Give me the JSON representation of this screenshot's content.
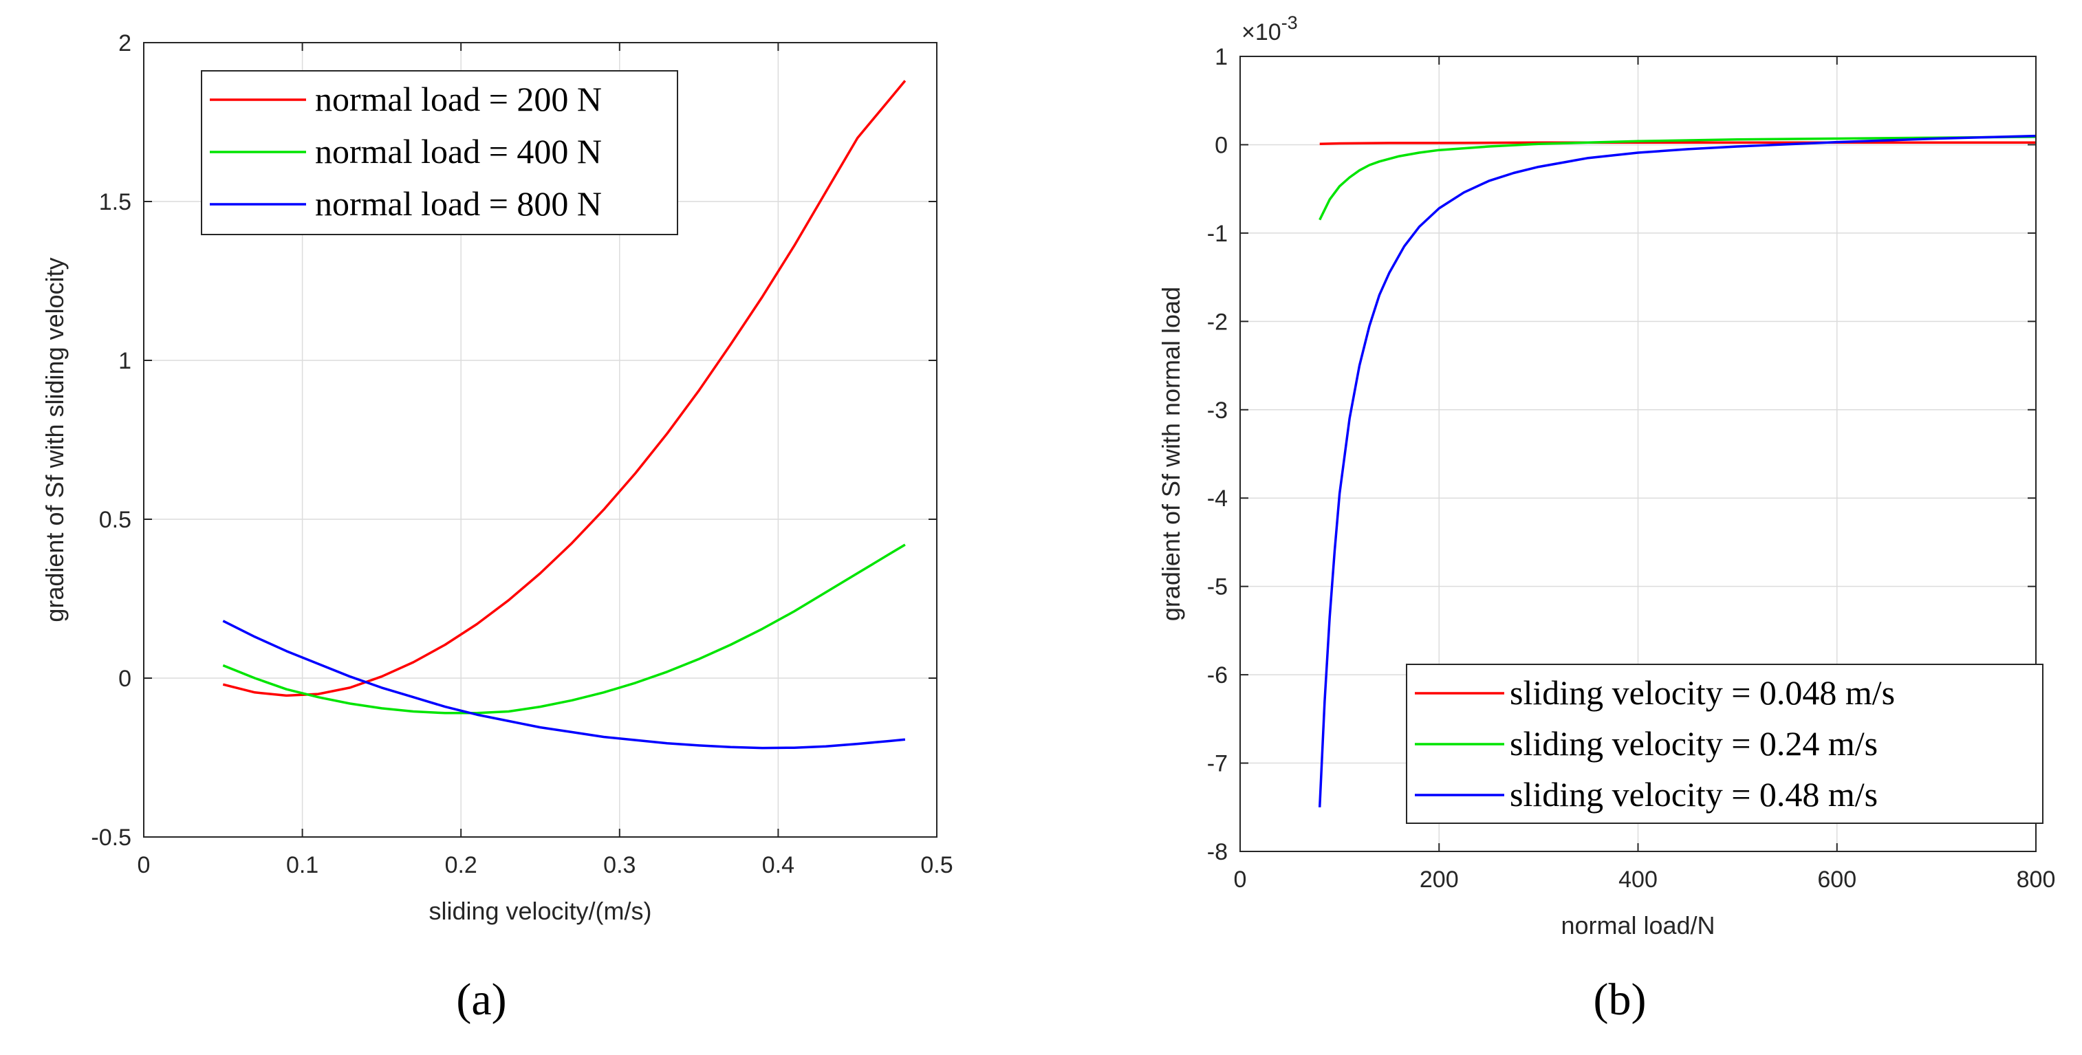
{
  "chart_data": [
    {
      "type": "line",
      "panel_label": "(a)",
      "title": "",
      "xlabel": "sliding velocity/(m/s)",
      "ylabel": "gradient of Sf with sliding velocity",
      "xlim": [
        0,
        0.5
      ],
      "ylim": [
        -0.5,
        2
      ],
      "xticks": [
        0,
        0.1,
        0.2,
        0.3,
        0.4,
        0.5
      ],
      "xtick_labels": [
        "0",
        "0.1",
        "0.2",
        "0.3",
        "0.4",
        "0.5"
      ],
      "yticks": [
        -0.5,
        0,
        0.5,
        1,
        1.5,
        2
      ],
      "ytick_labels": [
        "-0.5",
        "0",
        "0.5",
        "1",
        "1.5",
        "2"
      ],
      "grid": true,
      "legend_position": "top-left",
      "series": [
        {
          "name": "normal load = 200 N",
          "color": "#ff0000",
          "x": [
            0.05,
            0.07,
            0.09,
            0.11,
            0.13,
            0.15,
            0.17,
            0.19,
            0.21,
            0.23,
            0.25,
            0.27,
            0.29,
            0.31,
            0.33,
            0.35,
            0.37,
            0.39,
            0.41,
            0.43,
            0.45,
            0.47,
            0.48
          ],
          "y": [
            -0.02,
            -0.045,
            -0.055,
            -0.05,
            -0.03,
            0.005,
            0.05,
            0.105,
            0.17,
            0.245,
            0.33,
            0.425,
            0.53,
            0.645,
            0.77,
            0.905,
            1.05,
            1.2,
            1.36,
            1.53,
            1.7,
            1.82,
            1.88
          ]
        },
        {
          "name": "normal load = 400 N",
          "color": "#00e400",
          "x": [
            0.05,
            0.07,
            0.09,
            0.11,
            0.13,
            0.15,
            0.17,
            0.19,
            0.21,
            0.23,
            0.25,
            0.27,
            0.29,
            0.31,
            0.33,
            0.35,
            0.37,
            0.39,
            0.41,
            0.43,
            0.45,
            0.47,
            0.48
          ],
          "y": [
            0.04,
            0.0,
            -0.035,
            -0.06,
            -0.08,
            -0.095,
            -0.105,
            -0.11,
            -0.11,
            -0.105,
            -0.09,
            -0.07,
            -0.045,
            -0.015,
            0.02,
            0.06,
            0.105,
            0.155,
            0.21,
            0.27,
            0.33,
            0.39,
            0.42
          ]
        },
        {
          "name": "normal load = 800 N",
          "color": "#0000ff",
          "x": [
            0.05,
            0.07,
            0.09,
            0.11,
            0.13,
            0.15,
            0.17,
            0.19,
            0.21,
            0.23,
            0.25,
            0.27,
            0.29,
            0.31,
            0.33,
            0.35,
            0.37,
            0.39,
            0.41,
            0.43,
            0.45,
            0.47,
            0.48
          ],
          "y": [
            0.18,
            0.13,
            0.085,
            0.045,
            0.005,
            -0.03,
            -0.06,
            -0.09,
            -0.115,
            -0.135,
            -0.155,
            -0.17,
            -0.185,
            -0.195,
            -0.205,
            -0.212,
            -0.217,
            -0.22,
            -0.219,
            -0.215,
            -0.207,
            -0.198,
            -0.193
          ]
        }
      ]
    },
    {
      "type": "line",
      "panel_label": "(b)",
      "title": "",
      "xlabel": "normal load/N",
      "ylabel": "gradient of Sf with normal load",
      "y_multiplier_label": "×10",
      "y_multiplier_exponent": "-3",
      "xlim": [
        0,
        800
      ],
      "ylim": [
        -8,
        1
      ],
      "xticks": [
        0,
        200,
        400,
        600,
        800
      ],
      "xtick_labels": [
        "0",
        "200",
        "400",
        "600",
        "800"
      ],
      "yticks": [
        -8,
        -7,
        -6,
        -5,
        -4,
        -3,
        -2,
        -1,
        0,
        1
      ],
      "ytick_labels": [
        "-8",
        "-7",
        "-6",
        "-5",
        "-4",
        "-3",
        "-2",
        "-1",
        "0",
        "1"
      ],
      "grid": true,
      "legend_position": "bottom-right",
      "series": [
        {
          "name": "sliding velocity = 0.048 m/s",
          "color": "#ff0000",
          "x": [
            80,
            100,
            150,
            200,
            300,
            400,
            500,
            600,
            700,
            800
          ],
          "y": [
            0.01,
            0.015,
            0.02,
            0.02,
            0.025,
            0.025,
            0.025,
            0.025,
            0.025,
            0.025
          ]
        },
        {
          "name": "sliding velocity = 0.24 m/s",
          "color": "#00e400",
          "x": [
            80,
            90,
            100,
            110,
            120,
            130,
            140,
            160,
            180,
            200,
            250,
            300,
            400,
            500,
            600,
            700,
            800
          ],
          "y": [
            -0.85,
            -0.62,
            -0.47,
            -0.37,
            -0.29,
            -0.23,
            -0.19,
            -0.13,
            -0.09,
            -0.06,
            -0.02,
            0.01,
            0.04,
            0.06,
            0.07,
            0.08,
            0.09
          ]
        },
        {
          "name": "sliding velocity = 0.48 m/s",
          "color": "#0000ff",
          "x": [
            80,
            85,
            90,
            95,
            100,
            110,
            120,
            130,
            140,
            150,
            165,
            180,
            200,
            225,
            250,
            275,
            300,
            350,
            400,
            450,
            500,
            600,
            700,
            800
          ],
          "y": [
            -7.5,
            -6.3,
            -5.35,
            -4.6,
            -3.95,
            -3.1,
            -2.5,
            -2.05,
            -1.7,
            -1.45,
            -1.15,
            -0.93,
            -0.72,
            -0.54,
            -0.41,
            -0.32,
            -0.25,
            -0.15,
            -0.09,
            -0.05,
            -0.02,
            0.03,
            0.07,
            0.1
          ]
        }
      ]
    }
  ]
}
